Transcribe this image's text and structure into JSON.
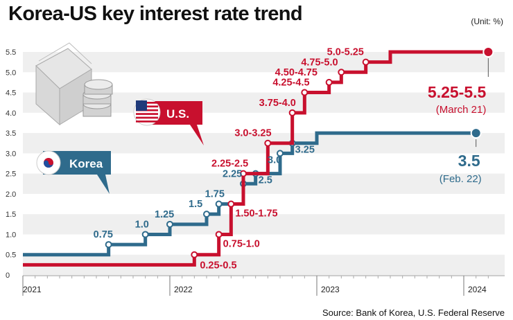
{
  "header": {
    "title": "Korea-US key interest rate trend",
    "unit": "(Unit: %)"
  },
  "footer": {
    "source": "Source: Bank of Korea, U.S. Federal Reserve"
  },
  "colors": {
    "korea": "#2f6b8c",
    "us": "#c8102e",
    "band": "#efefef"
  },
  "chart_data": {
    "type": "line",
    "title": "Korea-US key interest rate trend",
    "unit": "(Unit: %)",
    "ylim": [
      0,
      5.5
    ],
    "y_ticks": [
      "0",
      "0.5",
      "1.0",
      "1.5",
      "2.0",
      "2.5",
      "3.0",
      "3.5",
      "4.0",
      "4.5",
      "5.0",
      "5.5"
    ],
    "x_ticks": [
      "2021",
      "2022",
      "2023",
      "2024"
    ],
    "grid": "horizontal bands",
    "series": [
      {
        "name": "Korea",
        "step": true,
        "values": [
          {
            "x": "2021-08",
            "y": 0.75,
            "label": "0.75"
          },
          {
            "x": "2021-11",
            "y": 1.0,
            "label": "1.0"
          },
          {
            "x": "2022-01",
            "y": 1.25,
            "label": "1.25"
          },
          {
            "x": "2022-04",
            "y": 1.5,
            "label": "1.5"
          },
          {
            "x": "2022-05",
            "y": 1.75,
            "label": "1.75"
          },
          {
            "x": "2022-07",
            "y": 2.25,
            "label": "2.25"
          },
          {
            "x": "2022-08",
            "y": 2.5,
            "label": "2.5"
          },
          {
            "x": "2022-10",
            "y": 3.0,
            "label": "3.0"
          },
          {
            "x": "2022-11",
            "y": 3.25,
            "label": "3.25"
          },
          {
            "x": "2023-01",
            "y": 3.5
          },
          {
            "x": "2024-02",
            "y": 3.5,
            "label": "3.5",
            "date_label": "(Feb. 22)"
          }
        ]
      },
      {
        "name": "U.S.",
        "step": true,
        "values": [
          {
            "x": "2022-03",
            "y": 0.5,
            "label": "0.25-0.5"
          },
          {
            "x": "2022-05",
            "y": 1.0,
            "label": "0.75-1.0"
          },
          {
            "x": "2022-06",
            "y": 1.75,
            "label": "1.50-1.75"
          },
          {
            "x": "2022-07",
            "y": 2.5,
            "label": "2.25-2.5"
          },
          {
            "x": "2022-09",
            "y": 3.25,
            "label": "3.0-3.25"
          },
          {
            "x": "2022-11",
            "y": 4.0,
            "label": "3.75-4.0"
          },
          {
            "x": "2022-12",
            "y": 4.5,
            "label": "4.25-4.5"
          },
          {
            "x": "2023-02",
            "y": 4.75,
            "label": "4.50-4.75"
          },
          {
            "x": "2023-03",
            "y": 5.0,
            "label": "4.75-5.0"
          },
          {
            "x": "2023-05",
            "y": 5.25,
            "label": "5.0-5.25"
          },
          {
            "x": "2023-07",
            "y": 5.5
          },
          {
            "x": "2024-03",
            "y": 5.5,
            "label": "5.25-5.5",
            "date_label": "(March 21)"
          }
        ]
      }
    ],
    "legend_tags": {
      "korea": "Korea",
      "us": "U.S."
    }
  }
}
